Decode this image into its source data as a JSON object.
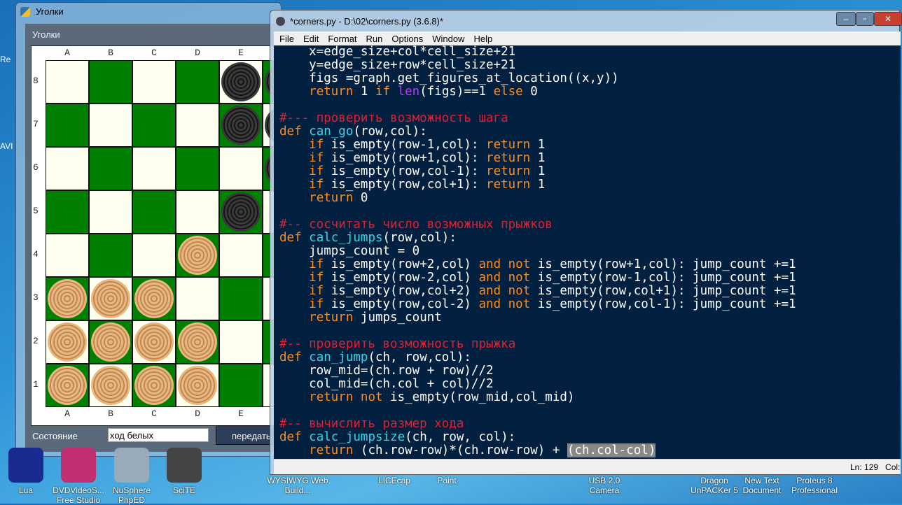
{
  "game_window": {
    "title": "Уголки",
    "inner_title": "Уголки",
    "columns": [
      "A",
      "B",
      "C",
      "D",
      "E"
    ],
    "rows": [
      "8",
      "7",
      "6",
      "5",
      "4",
      "3",
      "2",
      "1"
    ],
    "pieces": {
      "black": [
        "E8",
        "F8",
        "E7",
        "F7",
        "F6",
        "E5"
      ],
      "white": [
        "D4",
        "A3",
        "B3",
        "C3",
        "A2",
        "B2",
        "C2",
        "D2",
        "A1",
        "B1",
        "C1",
        "D1"
      ]
    },
    "state_label": "Состояние",
    "state_value": "ход белых",
    "send_button": "передать"
  },
  "editor": {
    "title": "*corners.py - D:\\02\\corners.py (3.6.8)*",
    "menu": [
      "File",
      "Edit",
      "Format",
      "Run",
      "Options",
      "Window",
      "Help"
    ],
    "status": "Ln: 129   Col:",
    "code": [
      [
        [
          "    x=edge_size+col*cell_size+21",
          ""
        ]
      ],
      [
        [
          "    y=edge_size+row*cell_size+21",
          ""
        ]
      ],
      [
        [
          "    figs =graph.get_figures_at_location((x,y))",
          ""
        ]
      ],
      [
        [
          "    ",
          ""
        ],
        [
          "return",
          "kw"
        ],
        [
          " 1 ",
          ""
        ],
        [
          "if",
          "kw"
        ],
        [
          " ",
          ""
        ],
        [
          "len",
          "bi"
        ],
        [
          "(figs)==1 ",
          ""
        ],
        [
          "else",
          "kw"
        ],
        [
          " 0",
          ""
        ]
      ],
      [
        [
          "",
          ""
        ]
      ],
      [
        [
          "#--- проверить возможность шага",
          "cm"
        ]
      ],
      [
        [
          "def",
          "kw"
        ],
        [
          " ",
          ""
        ],
        [
          "can_go",
          "fn"
        ],
        [
          "(row,col):",
          ""
        ]
      ],
      [
        [
          "    ",
          ""
        ],
        [
          "if",
          "kw"
        ],
        [
          " is_empty(row-1,col): ",
          ""
        ],
        [
          "return",
          "kw"
        ],
        [
          " 1",
          ""
        ]
      ],
      [
        [
          "    ",
          ""
        ],
        [
          "if",
          "kw"
        ],
        [
          " is_empty(row+1,col): ",
          ""
        ],
        [
          "return",
          "kw"
        ],
        [
          " 1",
          ""
        ]
      ],
      [
        [
          "    ",
          ""
        ],
        [
          "if",
          "kw"
        ],
        [
          " is_empty(row,col-1): ",
          ""
        ],
        [
          "return",
          "kw"
        ],
        [
          " 1",
          ""
        ]
      ],
      [
        [
          "    ",
          ""
        ],
        [
          "if",
          "kw"
        ],
        [
          " is_empty(row,col+1): ",
          ""
        ],
        [
          "return",
          "kw"
        ],
        [
          " 1",
          ""
        ]
      ],
      [
        [
          "    ",
          ""
        ],
        [
          "return",
          "kw"
        ],
        [
          " 0",
          ""
        ]
      ],
      [
        [
          "",
          ""
        ]
      ],
      [
        [
          "#-- сосчитать число возможных прыжков",
          "cm"
        ]
      ],
      [
        [
          "def",
          "kw"
        ],
        [
          " ",
          ""
        ],
        [
          "calc_jumps",
          "fn"
        ],
        [
          "(row,col):",
          ""
        ]
      ],
      [
        [
          "    jumps_count = 0",
          ""
        ]
      ],
      [
        [
          "    ",
          ""
        ],
        [
          "if",
          "kw"
        ],
        [
          " is_empty(row+2,col) ",
          ""
        ],
        [
          "and not",
          "kw"
        ],
        [
          " is_empty(row+1,col): jump_count +=1",
          ""
        ]
      ],
      [
        [
          "    ",
          ""
        ],
        [
          "if",
          "kw"
        ],
        [
          " is_empty(row-2,col) ",
          ""
        ],
        [
          "and not",
          "kw"
        ],
        [
          " is_empty(row-1,col): jump_count +=1",
          ""
        ]
      ],
      [
        [
          "    ",
          ""
        ],
        [
          "if",
          "kw"
        ],
        [
          " is_empty(row,col+2) ",
          ""
        ],
        [
          "and not",
          "kw"
        ],
        [
          " is_empty(row,col+1): jump_count +=1",
          ""
        ]
      ],
      [
        [
          "    ",
          ""
        ],
        [
          "if",
          "kw"
        ],
        [
          " is_empty(row,col-2) ",
          ""
        ],
        [
          "and not",
          "kw"
        ],
        [
          " is_empty(row,col-1): jump_count +=1",
          ""
        ]
      ],
      [
        [
          "    ",
          ""
        ],
        [
          "return",
          "kw"
        ],
        [
          " jumps_count",
          ""
        ]
      ],
      [
        [
          "",
          ""
        ]
      ],
      [
        [
          "#-- проверить возможность прыжка",
          "cm"
        ]
      ],
      [
        [
          "def",
          "kw"
        ],
        [
          " ",
          ""
        ],
        [
          "can_jump",
          "fn"
        ],
        [
          "(ch, row,col):",
          ""
        ]
      ],
      [
        [
          "    row_mid=(ch.row + row)//2",
          ""
        ]
      ],
      [
        [
          "    col_mid=(ch.col + col)//2",
          ""
        ]
      ],
      [
        [
          "    ",
          ""
        ],
        [
          "return not",
          "kw"
        ],
        [
          " is_empty(row_mid,col_mid)",
          ""
        ]
      ],
      [
        [
          "",
          ""
        ]
      ],
      [
        [
          "#-- вычислить размер хода",
          "cm"
        ]
      ],
      [
        [
          "def",
          "kw"
        ],
        [
          " ",
          ""
        ],
        [
          "calc_jumpsize",
          "fn"
        ],
        [
          "(ch, row, col):",
          ""
        ]
      ],
      [
        [
          "    ",
          ""
        ],
        [
          "return",
          "kw"
        ],
        [
          " (ch.row-row)*(ch.row-row) + ",
          ""
        ],
        [
          "(ch.col-col)",
          "sel"
        ]
      ]
    ]
  },
  "desktop": {
    "icons": [
      {
        "label": "Lua",
        "color": "#1a2a90"
      },
      {
        "label": "DVDVideoS... Free Studio",
        "color": "#c03070"
      },
      {
        "label": "NuSphere PhpED",
        "color": "#9ab"
      },
      {
        "label": "SciTE",
        "color": "#444"
      },
      {
        "label": "WYSIWYG Web Build...",
        "color": "#5af"
      },
      {
        "label": "LICEcap",
        "color": "#5af"
      },
      {
        "label": "Paint",
        "color": "#e8c040"
      },
      {
        "label": "USB 2.0 Camera",
        "color": "#5af"
      },
      {
        "label": "Dragon UnPACKer 5",
        "color": "#5af"
      },
      {
        "label": "New Text Document",
        "color": "#5af"
      },
      {
        "label": "Proteus 8 Professional",
        "color": "#5af"
      }
    ],
    "edge_labels": [
      "Re",
      "AVI"
    ]
  },
  "colors": {
    "board_dark": "#008000",
    "board_light": "#fffff0",
    "editor_bg": "#022040",
    "comment": "#e02030",
    "keyword": "#ff8c1a",
    "function": "#30d8e8",
    "builtin": "#b040f0"
  }
}
